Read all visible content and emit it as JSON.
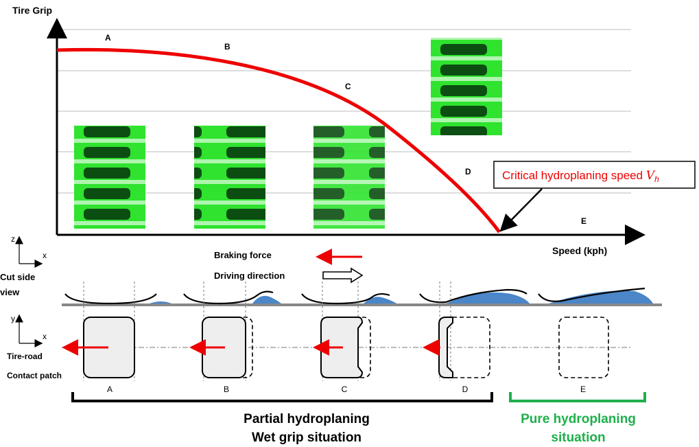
{
  "graph": {
    "y_axis_label": "Tire Grip",
    "x_axis_label": "Speed (kph)",
    "curve_labels": [
      "A",
      "B",
      "C",
      "D",
      "E"
    ],
    "callout": {
      "text": "Critical hydroplaning speed",
      "symbol": "V",
      "subscript": "h"
    }
  },
  "side_view": {
    "axes": [
      "z",
      "x"
    ],
    "label_lines": [
      "Cut side",
      "view"
    ]
  },
  "legend": {
    "braking": "Braking force",
    "driving": "Driving direction"
  },
  "contact_patch": {
    "axes": [
      "y",
      "x"
    ],
    "label_lines": [
      "Tire-road",
      "Contact patch"
    ],
    "stage_labels": [
      "A",
      "B",
      "C",
      "D",
      "E"
    ]
  },
  "groups": [
    {
      "lines": [
        "Partial hydroplaning",
        "Wet grip situation"
      ]
    },
    {
      "lines": [
        "Pure hydroplaning",
        "situation"
      ]
    }
  ]
}
